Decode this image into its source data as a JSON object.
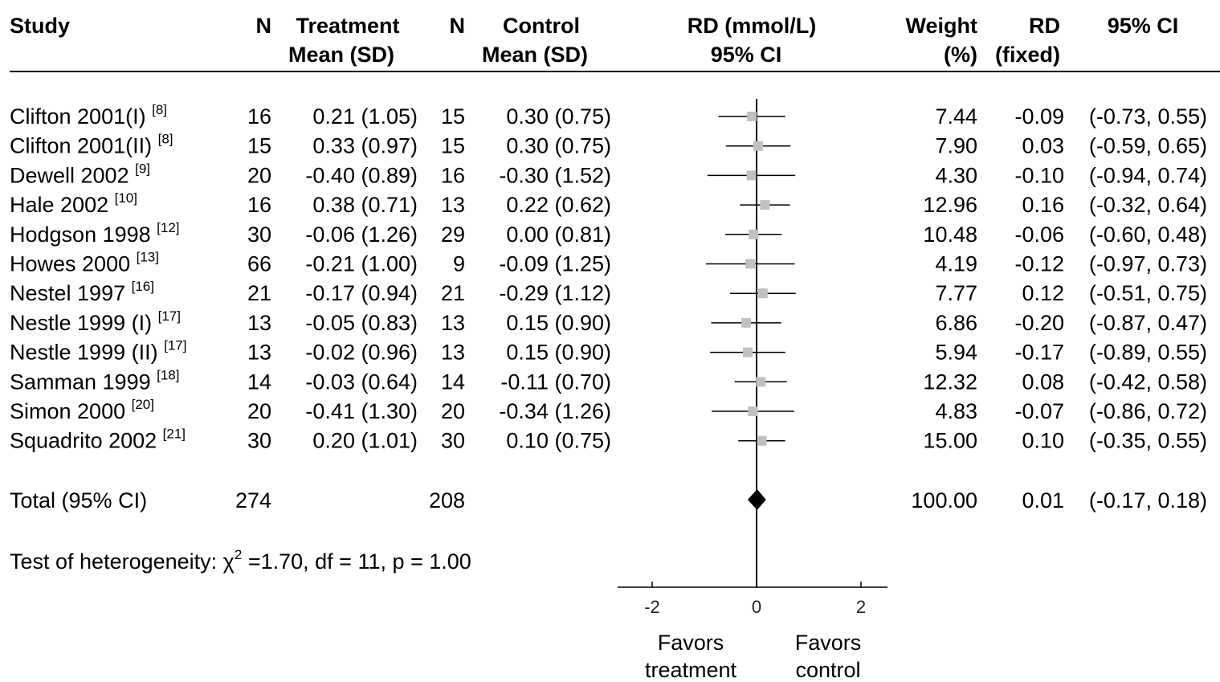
{
  "headers": {
    "study": "Study",
    "n1": "N",
    "treatment_line1": "Treatment",
    "treatment_line2": "Mean (SD)",
    "n2": "N",
    "control_line1": "Control",
    "control_line2": "Mean (SD)",
    "rd_line1": "RD (mmol/L)",
    "rd_line2": "95% CI",
    "weight_line1": "Weight",
    "weight_line2": "(%)",
    "rdfixed_line1": "RD",
    "rdfixed_line2": "(fixed)",
    "ci": "95% CI"
  },
  "studies": [
    {
      "name": "Clifton 2001(I)",
      "ref": "[8]",
      "n_t": "16",
      "mean_sd_t": "0.21 (1.05)",
      "n_c": "15",
      "mean_sd_c": "0.30 (0.75)",
      "weight": "7.44",
      "rd": "-0.09",
      "ci": "(-0.73, 0.55)"
    },
    {
      "name": "Clifton 2001(II)",
      "ref": "[8]",
      "n_t": "15",
      "mean_sd_t": "0.33 (0.97)",
      "n_c": "15",
      "mean_sd_c": "0.30 (0.75)",
      "weight": "7.90",
      "rd": "0.03",
      "ci": "(-0.59, 0.65)"
    },
    {
      "name": "Dewell 2002",
      "ref": "[9]",
      "n_t": "20",
      "mean_sd_t": "-0.40 (0.89)",
      "n_c": "16",
      "mean_sd_c": "-0.30 (1.52)",
      "weight": "4.30",
      "rd": "-0.10",
      "ci": "(-0.94, 0.74)"
    },
    {
      "name": "Hale 2002",
      "ref": "[10]",
      "n_t": "16",
      "mean_sd_t": "0.38 (0.71)",
      "n_c": "13",
      "mean_sd_c": "0.22 (0.62)",
      "weight": "12.96",
      "rd": "0.16",
      "ci": "(-0.32, 0.64)"
    },
    {
      "name": "Hodgson 1998",
      "ref": "[12]",
      "n_t": "30",
      "mean_sd_t": "-0.06 (1.26)",
      "n_c": "29",
      "mean_sd_c": "0.00 (0.81)",
      "weight": "10.48",
      "rd": "-0.06",
      "ci": "(-0.60, 0.48)"
    },
    {
      "name": "Howes 2000",
      "ref": "[13]",
      "n_t": "66",
      "mean_sd_t": "-0.21 (1.00)",
      "n_c": "9",
      "mean_sd_c": "-0.09 (1.25)",
      "weight": "4.19",
      "rd": "-0.12",
      "ci": "(-0.97, 0.73)"
    },
    {
      "name": "Nestel 1997",
      "ref": "[16]",
      "n_t": "21",
      "mean_sd_t": "-0.17 (0.94)",
      "n_c": "21",
      "mean_sd_c": "-0.29 (1.12)",
      "weight": "7.77",
      "rd": "0.12",
      "ci": "(-0.51, 0.75)"
    },
    {
      "name": "Nestle 1999 (I)",
      "ref": "[17]",
      "n_t": "13",
      "mean_sd_t": "-0.05 (0.83)",
      "n_c": "13",
      "mean_sd_c": "0.15 (0.90)",
      "weight": "6.86",
      "rd": "-0.20",
      "ci": "(-0.87, 0.47)"
    },
    {
      "name": "Nestle 1999 (II)",
      "ref": "[17]",
      "n_t": "13",
      "mean_sd_t": "-0.02 (0.96)",
      "n_c": "13",
      "mean_sd_c": "0.15 (0.90)",
      "weight": "5.94",
      "rd": "-0.17",
      "ci": "(-0.89, 0.55)"
    },
    {
      "name": "Samman 1999",
      "ref": "[18]",
      "n_t": "14",
      "mean_sd_t": "-0.03 (0.64)",
      "n_c": "14",
      "mean_sd_c": "-0.11 (0.70)",
      "weight": "12.32",
      "rd": "0.08",
      "ci": "(-0.42, 0.58)"
    },
    {
      "name": "Simon 2000",
      "ref": "[20]",
      "n_t": "20",
      "mean_sd_t": "-0.41 (1.30)",
      "n_c": "20",
      "mean_sd_c": "-0.34 (1.26)",
      "weight": "4.83",
      "rd": "-0.07",
      "ci": "(-0.86, 0.72)"
    },
    {
      "name": "Squadrito 2002",
      "ref": "[21]",
      "n_t": "30",
      "mean_sd_t": "0.20 (1.01)",
      "n_c": "30",
      "mean_sd_c": "0.10 (0.75)",
      "weight": "15.00",
      "rd": "0.10",
      "ci": "(-0.35, 0.55)"
    }
  ],
  "total": {
    "label": "Total (95% CI)",
    "n_t": "274",
    "n_c": "208",
    "weight": "100.00",
    "rd": "0.01",
    "ci": "(-0.17, 0.18)"
  },
  "heterogeneity": {
    "prefix": "Test of heterogeneity: ",
    "chi": "χ",
    "sup": "2",
    "rest": " =1.70, df = 11, p = 1.00"
  },
  "axis": {
    "ticks": [
      "-2",
      "0",
      "2"
    ]
  },
  "favors": {
    "left_line1": "Favors",
    "left_line2": "treatment",
    "right_line1": "Favors",
    "right_line2": "control"
  },
  "colors": {
    "square": "#c0c0c0",
    "diamond": "#000000",
    "line": "#000000"
  },
  "chart_data": {
    "type": "forest",
    "xlabel": "RD (mmol/L) 95% CI",
    "xlim": [
      -2.3,
      2.3
    ],
    "ticks": [
      -2,
      0,
      2
    ],
    "rd": [
      -0.09,
      0.03,
      -0.1,
      0.16,
      -0.06,
      -0.12,
      0.12,
      -0.2,
      -0.17,
      0.08,
      -0.07,
      0.1
    ],
    "ci_low": [
      -0.73,
      -0.59,
      -0.94,
      -0.32,
      -0.6,
      -0.97,
      -0.51,
      -0.87,
      -0.89,
      -0.42,
      -0.86,
      -0.35
    ],
    "ci_high": [
      0.55,
      0.65,
      0.74,
      0.64,
      0.48,
      0.73,
      0.75,
      0.47,
      0.55,
      0.58,
      0.72,
      0.55
    ],
    "total": {
      "rd": 0.01,
      "ci_low": -0.17,
      "ci_high": 0.18
    }
  }
}
